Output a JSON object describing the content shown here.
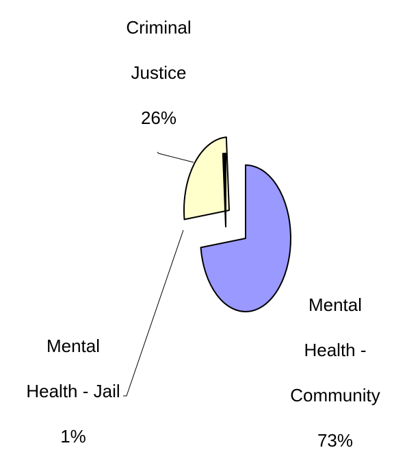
{
  "chart_data": {
    "type": "pie",
    "categories": [
      "Mental Health - Community",
      "Criminal Justice",
      "Mental Health - Jail"
    ],
    "values": [
      73,
      26,
      1
    ],
    "value_labels": [
      "73%",
      "26%",
      "1%"
    ],
    "colors": [
      "#9999ff",
      "#ffffcc",
      "#000000"
    ]
  }
}
